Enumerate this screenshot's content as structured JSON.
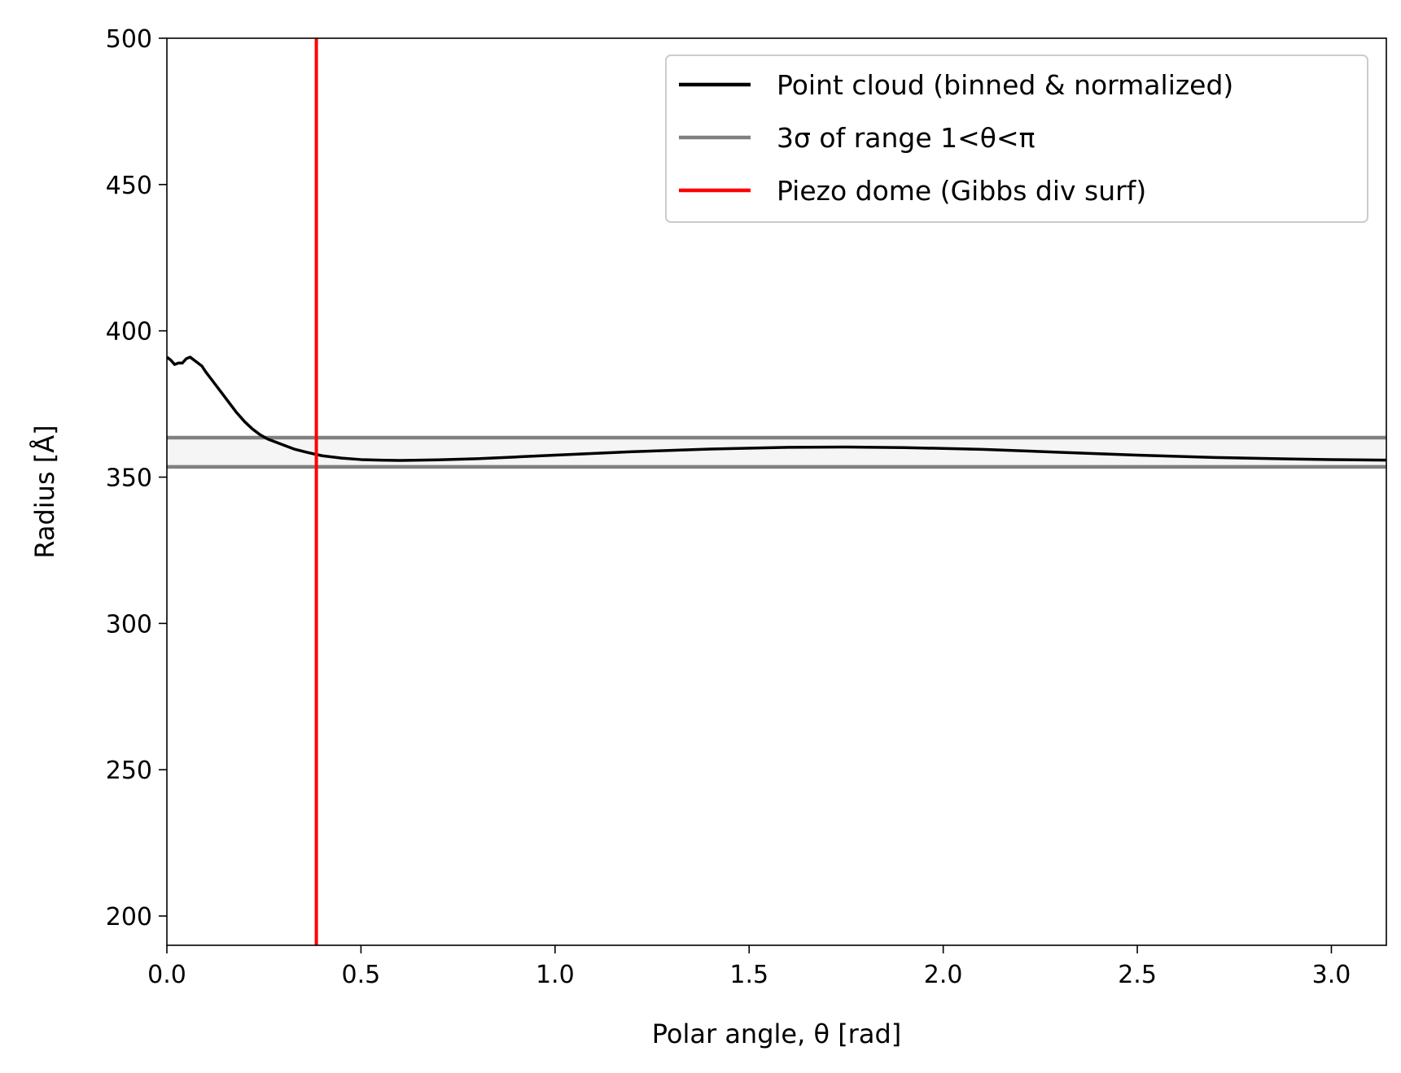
{
  "chart_data": {
    "type": "line",
    "xlabel": "Polar angle, θ [rad]",
    "ylabel": "Radius [Å]",
    "xlim": [
      0,
      3.14159
    ],
    "ylim": [
      190,
      500
    ],
    "x_ticks": [
      0.0,
      0.5,
      1.0,
      1.5,
      2.0,
      2.5,
      3.0
    ],
    "x_tick_labels": [
      "0.0",
      "0.5",
      "1.0",
      "1.5",
      "2.0",
      "2.5",
      "3.0"
    ],
    "y_ticks": [
      200,
      250,
      300,
      350,
      400,
      450,
      500
    ],
    "y_tick_labels": [
      "200",
      "250",
      "300",
      "350",
      "400",
      "450",
      "500"
    ],
    "legend_position": "top-right",
    "series": [
      {
        "name": "Point cloud (binned & normalized)",
        "color": "#000000",
        "x": [
          0.0,
          0.01,
          0.02,
          0.03,
          0.04,
          0.05,
          0.06,
          0.07,
          0.08,
          0.09,
          0.1,
          0.12,
          0.14,
          0.16,
          0.18,
          0.2,
          0.22,
          0.24,
          0.26,
          0.28,
          0.3,
          0.33,
          0.36,
          0.4,
          0.45,
          0.5,
          0.55,
          0.6,
          0.7,
          0.8,
          0.9,
          1.0,
          1.2,
          1.4,
          1.6,
          1.75,
          1.9,
          2.1,
          2.3,
          2.5,
          2.7,
          2.9,
          3.0,
          3.14159
        ],
        "y": [
          391,
          390,
          388.5,
          389,
          389,
          390.5,
          391,
          390,
          389,
          388,
          386,
          382.5,
          379,
          375.5,
          372,
          369,
          366.5,
          364.5,
          363,
          362,
          361,
          359.5,
          358.5,
          357.3,
          356.5,
          356,
          355.8,
          355.7,
          355.9,
          356.3,
          356.9,
          357.5,
          358.7,
          359.6,
          360.2,
          360.3,
          360.1,
          359.5,
          358.5,
          357.5,
          356.7,
          356.2,
          356,
          355.8
        ]
      },
      {
        "name": "3σ of range 1<θ<π",
        "color": "#808080",
        "upper": 363.5,
        "lower": 353.5,
        "fill": "#f5f5f5"
      },
      {
        "name": "Piezo dome (Gibbs div surf)",
        "color": "#ff0000",
        "x_value": 0.385
      }
    ]
  }
}
